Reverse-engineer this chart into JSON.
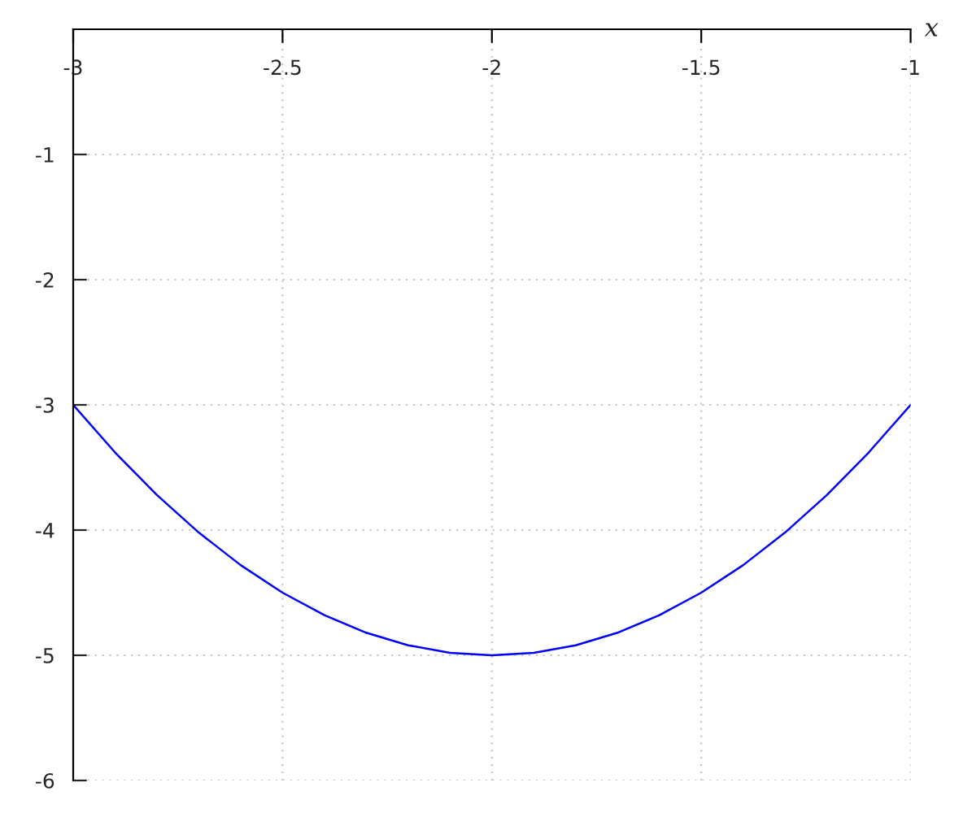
{
  "chart_data": {
    "type": "line",
    "xlabel": "x",
    "x": [
      -3,
      -2.9,
      -2.8,
      -2.7,
      -2.6,
      -2.5,
      -2.4,
      -2.3,
      -2.2,
      -2.1,
      -2,
      -1.9,
      -1.8,
      -1.7,
      -1.6,
      -1.5,
      -1.4,
      -1.3,
      -1.2,
      -1.1,
      -1
    ],
    "series": [
      {
        "color": "#0000ff",
        "values": [
          -3,
          -3.38,
          -3.72,
          -4.02,
          -4.28,
          -4.5,
          -4.68,
          -4.82,
          -4.92,
          -4.98,
          -5,
          -4.98,
          -4.92,
          -4.82,
          -4.68,
          -4.5,
          -4.28,
          -4.02,
          -3.72,
          -3.38,
          -3
        ]
      }
    ],
    "xlim": [
      -3,
      -1
    ],
    "ylim": [
      -6,
      0
    ],
    "xticks": [
      -3,
      -2.5,
      -2,
      -1.5,
      -1
    ],
    "yticks": [
      -6,
      -5,
      -4,
      -3,
      -2,
      -1
    ],
    "grid": true,
    "marker": "none",
    "line_style": "solid"
  }
}
